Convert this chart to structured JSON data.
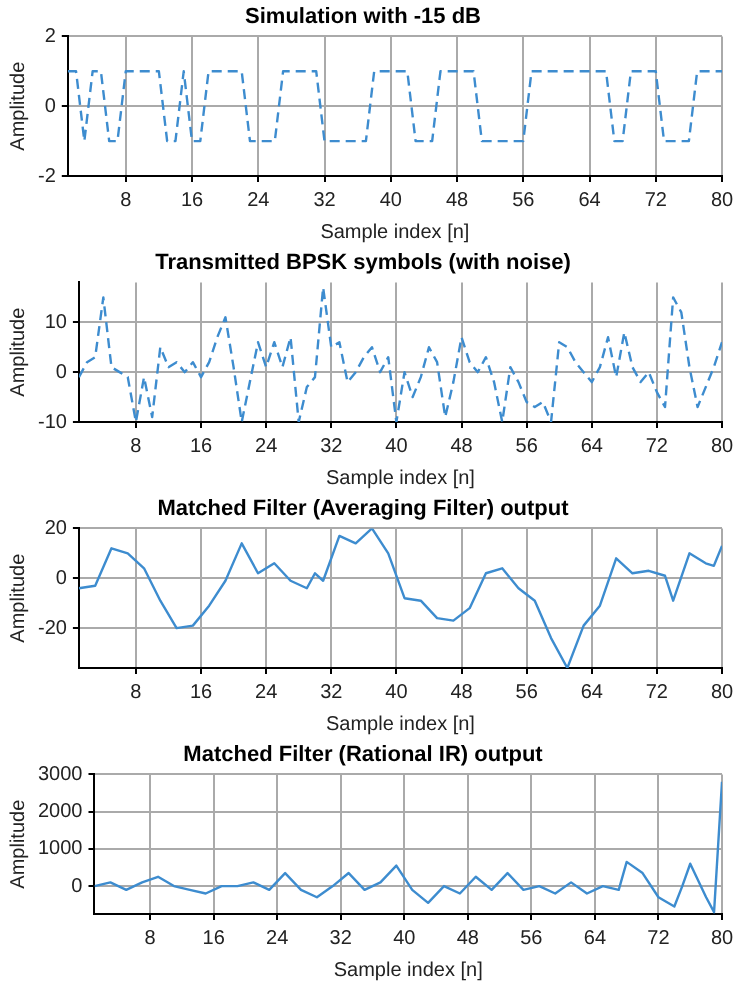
{
  "chart_data": [
    {
      "type": "line",
      "title": "Simulation with -15 dB",
      "xlabel": "Sample index [n]",
      "ylabel": "Amplitude",
      "xlim": [
        1,
        80
      ],
      "xticks": [
        8,
        16,
        24,
        32,
        40,
        48,
        56,
        64,
        72,
        80
      ],
      "ylim": [
        -2,
        2
      ],
      "yticks": [
        -2,
        0,
        2
      ],
      "grid": true,
      "line_style": "dashed",
      "x": [
        1,
        2,
        3,
        4,
        5,
        6,
        7,
        8,
        9,
        10,
        11,
        12,
        13,
        14,
        15,
        16,
        17,
        18,
        19,
        20,
        21,
        22,
        23,
        24,
        25,
        26,
        27,
        28,
        29,
        30,
        31,
        32,
        33,
        34,
        35,
        36,
        37,
        38,
        39,
        40,
        41,
        42,
        43,
        44,
        45,
        46,
        47,
        48,
        49,
        50,
        51,
        52,
        53,
        54,
        55,
        56,
        57,
        58,
        59,
        60,
        61,
        62,
        63,
        64,
        65,
        66,
        67,
        68,
        69,
        70,
        71,
        72,
        73,
        74,
        75,
        76,
        77,
        78,
        79,
        80
      ],
      "series": [
        {
          "color": "#3d8ccf",
          "values": [
            1,
            1,
            -1,
            1,
            1,
            -1,
            -1,
            1,
            1,
            1,
            1,
            1,
            -1,
            -1,
            1,
            -1,
            -1,
            1,
            1,
            1,
            1,
            1,
            -1,
            -1,
            -1,
            -1,
            1,
            1,
            1,
            1,
            1,
            -1,
            -1,
            -1,
            -1,
            -1,
            -1,
            1,
            1,
            1,
            1,
            1,
            -1,
            -1,
            -1,
            1,
            1,
            1,
            1,
            1,
            -1,
            -1,
            -1,
            -1,
            -1,
            -1,
            1,
            1,
            1,
            1,
            1,
            1,
            1,
            1,
            1,
            1,
            -1,
            -1,
            1,
            1,
            1,
            1,
            -1,
            -1,
            -1,
            -1,
            1,
            1,
            1,
            1
          ]
        }
      ]
    },
    {
      "type": "line",
      "title": "Transmitted BPSK symbols (with noise)",
      "xlabel": "Sample index [n]",
      "ylabel": "Amplitude",
      "xlim": [
        1,
        80
      ],
      "xticks": [
        8,
        16,
        24,
        32,
        40,
        48,
        56,
        64,
        72,
        80
      ],
      "ylim": [
        -10,
        18
      ],
      "yticks": [
        -10,
        0,
        10
      ],
      "grid": true,
      "line_style": "dashed",
      "x": [
        1,
        2,
        3,
        4,
        5,
        6,
        7,
        8,
        9,
        10,
        11,
        12,
        13,
        14,
        15,
        16,
        17,
        18,
        19,
        20,
        21,
        22,
        23,
        24,
        25,
        26,
        27,
        28,
        29,
        30,
        31,
        32,
        33,
        34,
        35,
        36,
        37,
        38,
        39,
        40,
        41,
        42,
        43,
        44,
        45,
        46,
        47,
        48,
        49,
        50,
        51,
        52,
        53,
        54,
        55,
        56,
        57,
        58,
        59,
        60,
        61,
        62,
        63,
        64,
        65,
        66,
        67,
        68,
        69,
        70,
        71,
        72,
        73,
        74,
        75,
        76,
        77,
        78,
        79,
        80
      ],
      "series": [
        {
          "color": "#3d8ccf",
          "values": [
            -1,
            2,
            3,
            15,
            1,
            0,
            -1,
            -10,
            -1,
            -9,
            5,
            1,
            2,
            0,
            2,
            -1,
            2,
            7,
            11,
            1,
            -10,
            -2,
            6,
            1,
            6,
            1,
            7,
            -10,
            -3,
            -1,
            17,
            5,
            6,
            -2,
            0,
            3,
            5,
            0,
            3,
            -10,
            0,
            -5,
            -1,
            5,
            2,
            -9,
            -2,
            7,
            2,
            0,
            3,
            -2,
            -10,
            1,
            -2,
            -6,
            -7,
            -6,
            -10,
            6,
            5,
            2,
            0,
            -2,
            1,
            7,
            -1,
            8,
            1,
            -2,
            0,
            -4,
            -7,
            15,
            12,
            1,
            -7,
            -3,
            1,
            6
          ]
        }
      ]
    },
    {
      "type": "line",
      "title": "Matched Filter (Averaging Filter) output",
      "xlabel": "Sample index [n]",
      "ylabel": "Amplitude",
      "xlim": [
        1,
        80
      ],
      "xticks": [
        8,
        16,
        24,
        32,
        40,
        48,
        56,
        64,
        72,
        80
      ],
      "ylim": [
        -36,
        20
      ],
      "yticks": [
        -20,
        0,
        20
      ],
      "grid": true,
      "x": [
        1,
        3,
        5,
        7,
        9,
        11,
        13,
        15,
        17,
        19,
        21,
        23,
        25,
        27,
        29,
        30,
        31,
        33,
        35,
        37,
        39,
        41,
        43,
        45,
        47,
        49,
        51,
        53,
        55,
        57,
        59,
        61,
        63,
        65,
        67,
        69,
        71,
        73,
        74,
        76,
        78,
        79,
        80
      ],
      "series": [
        {
          "color": "#3d8ccf",
          "values": [
            -4,
            -3,
            12,
            10,
            4,
            -9,
            -20,
            -19,
            -11,
            -1,
            14,
            2,
            6,
            -1,
            -4,
            2,
            -1,
            17,
            14,
            20,
            10,
            -8,
            -9,
            -16,
            -17,
            -12,
            2,
            4,
            -4,
            -9,
            -24,
            -36,
            -19,
            -11,
            8,
            2,
            3,
            1,
            -9,
            10,
            6,
            5,
            13
          ]
        }
      ]
    },
    {
      "type": "line",
      "title": "Matched Filter (Rational IR) output",
      "xlabel": "Sample index [n]",
      "ylabel": "Amplitude",
      "xlim": [
        1,
        80
      ],
      "xticks": [
        8,
        16,
        24,
        32,
        40,
        48,
        56,
        64,
        72,
        80
      ],
      "ylim": [
        -750,
        3000
      ],
      "yticks": [
        0,
        1000,
        2000,
        3000
      ],
      "grid": true,
      "x": [
        1,
        3,
        5,
        7,
        9,
        11,
        13,
        15,
        17,
        19,
        21,
        23,
        25,
        27,
        29,
        31,
        33,
        35,
        37,
        39,
        41,
        43,
        45,
        47,
        49,
        51,
        53,
        55,
        57,
        59,
        61,
        63,
        65,
        67,
        68,
        70,
        72,
        74,
        75,
        76,
        78,
        79,
        80
      ],
      "series": [
        {
          "color": "#3d8ccf",
          "values": [
            0,
            100,
            -100,
            100,
            250,
            0,
            -100,
            -200,
            0,
            0,
            100,
            -100,
            350,
            -100,
            -300,
            0,
            350,
            -100,
            100,
            550,
            -100,
            -450,
            0,
            -200,
            250,
            -100,
            350,
            -100,
            0,
            -200,
            100,
            -200,
            0,
            -100,
            650,
            350,
            -300,
            -550,
            0,
            600,
            -300,
            -700,
            2800
          ]
        }
      ]
    }
  ]
}
